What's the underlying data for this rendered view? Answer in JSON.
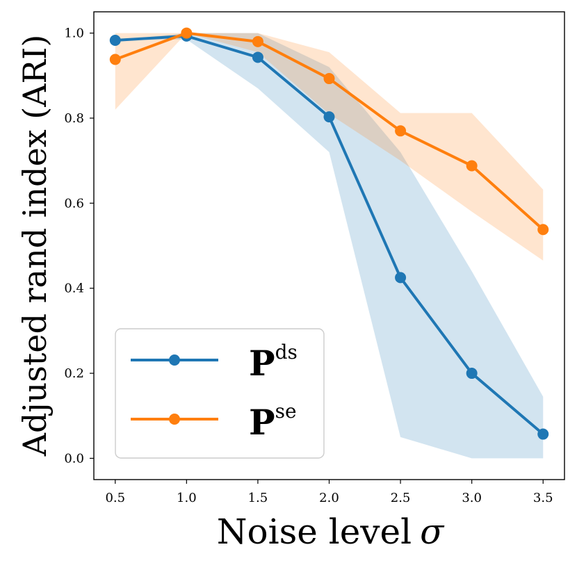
{
  "chart_data": {
    "type": "line",
    "xlabel": "Noise level",
    "xlabel_symbol": "σ",
    "ylabel": "Adjusted rand index (ARI)",
    "xlim": [
      0.35,
      3.65
    ],
    "ylim": [
      -0.05,
      1.05
    ],
    "x": [
      0.5,
      1.0,
      1.5,
      2.0,
      2.5,
      3.0,
      3.5
    ],
    "xticks": [
      "0.5",
      "1.0",
      "1.5",
      "2.0",
      "2.5",
      "3.0",
      "3.5"
    ],
    "yticks": [
      "0.0",
      "0.2",
      "0.4",
      "0.6",
      "0.8",
      "1.0"
    ],
    "legend_position": "lower-left",
    "series": [
      {
        "name": "P",
        "sup": "ds",
        "color": "#1f77b4",
        "fill_color": "#1f77b4",
        "values": [
          0.983,
          0.993,
          0.943,
          0.803,
          0.425,
          0.2,
          0.057
        ],
        "lower": [
          0.983,
          0.985,
          0.87,
          0.72,
          0.05,
          0.0,
          0.0
        ],
        "upper": [
          0.983,
          1.0,
          1.0,
          0.92,
          0.72,
          0.44,
          0.145
        ]
      },
      {
        "name": "P",
        "sup": "se",
        "color": "#ff7f0e",
        "fill_color": "#ff7f0e",
        "values": [
          0.938,
          1.0,
          0.98,
          0.893,
          0.77,
          0.688,
          0.538
        ],
        "lower": [
          0.82,
          1.0,
          0.955,
          0.81,
          0.7,
          0.58,
          0.465
        ],
        "upper": [
          1.0,
          1.0,
          1.0,
          0.955,
          0.812,
          0.812,
          0.632
        ]
      }
    ]
  }
}
